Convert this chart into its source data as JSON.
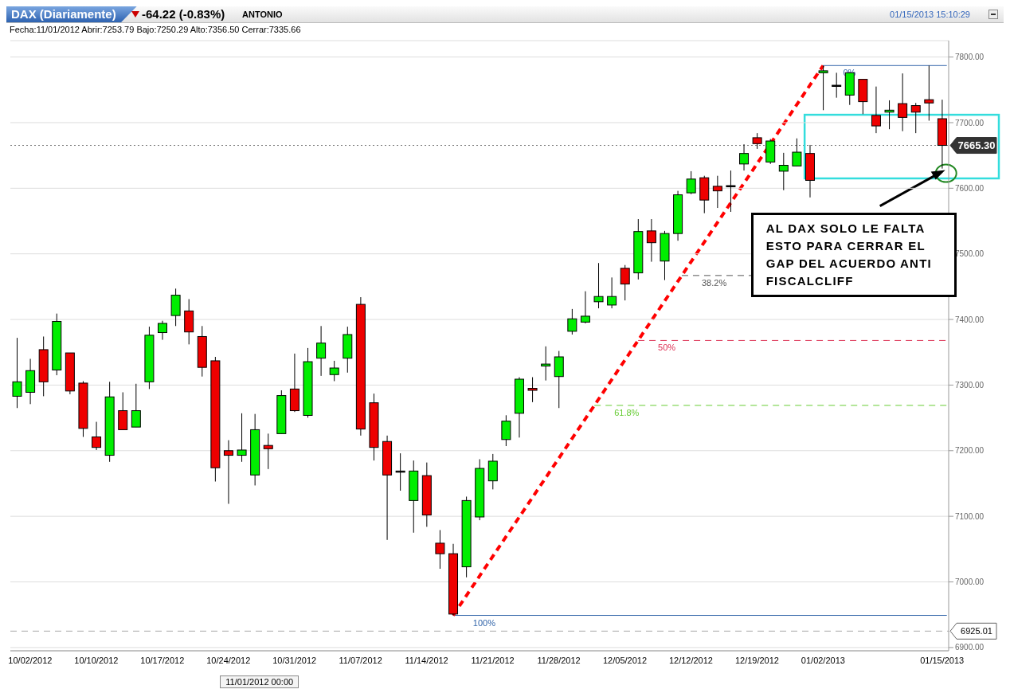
{
  "chart_data": {
    "type": "candlestick",
    "title": "DAX (Diariamente)",
    "subtitle": "-64.22 (-0.83%)",
    "annotations": [
      "ANTONIO",
      "Fecha:11/01/2012 Abrir:7253.79 Bajo:7250.29 Alto:7356.50 Cerrar:7335.66",
      "01/15/2013 15:10:29",
      "11/01/2012 00:00",
      {
        "text": "AL DAX SOLO LE FALTA ESTO PARA CERRAR EL GAP DEL ACUERDO ANTI FISCALCLIFF",
        "x": "01/15/2013",
        "y": 7630
      },
      {
        "text": "0%",
        "y": 7787
      },
      {
        "text": "38.2%",
        "y": 7467
      },
      {
        "text": "50%",
        "y": 7368
      },
      {
        "text": "61.8%",
        "y": 7269
      },
      {
        "text": "100%",
        "y": 6949
      }
    ],
    "categories": [
      null,
      "10/02/2012",
      null,
      null,
      null,
      null,
      "10/10/2012",
      null,
      null,
      null,
      null,
      "10/17/2012",
      null,
      null,
      null,
      null,
      "10/24/2012",
      null,
      null,
      null,
      null,
      "10/31/2012",
      null,
      null,
      null,
      null,
      "11/07/2012",
      null,
      null,
      null,
      null,
      "11/14/2012",
      null,
      null,
      null,
      null,
      "11/21/2012",
      null,
      null,
      null,
      null,
      "11/28/2012",
      null,
      null,
      null,
      null,
      "12/05/2012",
      null,
      null,
      null,
      null,
      "12/12/2012",
      null,
      null,
      null,
      null,
      "12/19/2012",
      null,
      null,
      null,
      null,
      "01/02/2013",
      null,
      null,
      null,
      null,
      null,
      null,
      null,
      null,
      "01/15/2013"
    ],
    "ohlc": [
      [
        7283,
        7372,
        7265,
        7305
      ],
      [
        7289,
        7340,
        7271,
        7322
      ],
      [
        7354,
        7374,
        7283,
        7305
      ],
      [
        7323,
        7409,
        7315,
        7397
      ],
      [
        7349,
        7349,
        7286,
        7291
      ],
      [
        7303,
        7306,
        7221,
        7234
      ],
      [
        7221,
        7244,
        7201,
        7205
      ],
      [
        7193,
        7305,
        7183,
        7282
      ],
      [
        7261,
        7289,
        7232,
        7232
      ],
      [
        7236,
        7302,
        7236,
        7261
      ],
      [
        7305,
        7389,
        7294,
        7376
      ],
      [
        7380,
        7398,
        7369,
        7394
      ],
      [
        7406,
        7447,
        7390,
        7437
      ],
      [
        7413,
        7431,
        7362,
        7381
      ],
      [
        7374,
        7390,
        7313,
        7327
      ],
      [
        7337,
        7343,
        7153,
        7174
      ],
      [
        7200,
        7216,
        7119,
        7193
      ],
      [
        7193,
        7257,
        7183,
        7201
      ],
      [
        7163,
        7256,
        7147,
        7232
      ],
      [
        7208,
        7226,
        7172,
        7203
      ],
      [
        7226,
        7292,
        7226,
        7284
      ],
      [
        7294,
        7348,
        7259,
        7261
      ],
      [
        7253.79,
        7356.5,
        7250.29,
        7335.66
      ],
      [
        7341,
        7390,
        7314,
        7364
      ],
      [
        7316,
        7337,
        7306,
        7326
      ],
      [
        7341,
        7389,
        7319,
        7377
      ],
      [
        7423,
        7434,
        7223,
        7233
      ],
      [
        7273,
        7287,
        7185,
        7205
      ],
      [
        7214,
        7223,
        7064,
        7163
      ],
      [
        7169,
        7196,
        7139,
        7169
      ],
      [
        7124,
        7185,
        7075,
        7169
      ],
      [
        7162,
        7182,
        7084,
        7102
      ],
      [
        7059,
        7079,
        7020,
        7043
      ],
      [
        7043,
        7058,
        6949,
        6951
      ],
      [
        7023,
        7130,
        7007,
        7124
      ],
      [
        7099,
        7187,
        7094,
        7173
      ],
      [
        7154,
        7195,
        7141,
        7184
      ],
      [
        7217,
        7254,
        7207,
        7245
      ],
      [
        7257,
        7312,
        7220,
        7309
      ],
      [
        7295,
        7312,
        7274,
        7292
      ],
      [
        7329,
        7359,
        7307,
        7332
      ],
      [
        7313,
        7352,
        7265,
        7343
      ],
      [
        7382,
        7416,
        7377,
        7401
      ],
      [
        7396,
        7443,
        7394,
        7405
      ],
      [
        7427,
        7486,
        7417,
        7435
      ],
      [
        7422,
        7464,
        7417,
        7435
      ],
      [
        7478,
        7483,
        7429,
        7454
      ],
      [
        7471,
        7553,
        7461,
        7534
      ],
      [
        7535,
        7553,
        7488,
        7517
      ],
      [
        7489,
        7535,
        7460,
        7531
      ],
      [
        7531,
        7596,
        7520,
        7590
      ],
      [
        7593,
        7626,
        7591,
        7614
      ],
      [
        7616,
        7619,
        7562,
        7582
      ],
      [
        7603,
        7619,
        7570,
        7596
      ],
      [
        7604,
        7627,
        7564,
        7604
      ],
      [
        7637,
        7667,
        7627,
        7653
      ],
      [
        7677,
        7684,
        7660,
        7668
      ],
      [
        7640,
        7675,
        7637,
        7672
      ],
      [
        7626,
        7654,
        7597,
        7635
      ],
      [
        7634,
        7676,
        7634,
        7655
      ],
      [
        7653,
        7666,
        7586,
        7612
      ],
      [
        7776,
        7787,
        7719,
        7779
      ],
      [
        7757,
        7776,
        7738,
        7757
      ],
      [
        7742,
        7777,
        7727,
        7776
      ],
      [
        7766,
        7766,
        7713,
        7732
      ],
      [
        7711,
        7755,
        7684,
        7695
      ],
      [
        7716,
        7734,
        7690,
        7719
      ],
      [
        7729,
        7775,
        7687,
        7708
      ],
      [
        7726,
        7730,
        7684,
        7716
      ],
      [
        7735,
        7787,
        7703,
        7730
      ],
      [
        7706,
        7735,
        7630,
        7665.3
      ]
    ],
    "colors": [
      "#00ee00",
      "#00ee00",
      "#ee0000",
      "#00ee00",
      "#ee0000",
      "#ee0000",
      "#ee0000",
      "#00ee00",
      "#ee0000",
      "#00ee00",
      "#00ee00",
      "#00ee00",
      "#00ee00",
      "#ee0000",
      "#ee0000",
      "#ee0000",
      "#ee0000",
      "#00ee00",
      "#00ee00",
      "#ee0000",
      "#00ee00",
      "#ee0000",
      "#00ee00",
      "#00ee00",
      "#00ee00",
      "#00ee00",
      "#ee0000",
      "#ee0000",
      "#ee0000",
      "#000000",
      "#00ee00",
      "#ee0000",
      "#ee0000",
      "#ee0000",
      "#00ee00",
      "#00ee00",
      "#00ee00",
      "#00ee00",
      "#00ee00",
      "#ee0000",
      "#00ee00",
      "#00ee00",
      "#00ee00",
      "#00ee00",
      "#00ee00",
      "#00ee00",
      "#ee0000",
      "#00ee00",
      "#ee0000",
      "#00ee00",
      "#00ee00",
      "#00ee00",
      "#ee0000",
      "#ee0000",
      "#000000",
      "#00ee00",
      "#ee0000",
      "#00ee00",
      "#00ee00",
      "#00ee00",
      "#ee0000",
      "#00ee00",
      "#000000",
      "#00ee00",
      "#ee0000",
      "#ee0000",
      "#00ee00",
      "#ee0000",
      "#ee0000",
      "#ee0000",
      "#ee0000"
    ],
    "series": [
      {
        "type": "line",
        "color": "#ff0000",
        "line_style": "dashed",
        "values": [
          null,
          null,
          null,
          null,
          null,
          null,
          null,
          null,
          null,
          null,
          null,
          null,
          null,
          null,
          null,
          null,
          null,
          null,
          null,
          null,
          null,
          null,
          null,
          null,
          null,
          null,
          null,
          null,
          null,
          null,
          null,
          null,
          null,
          6949,
          null,
          null,
          null,
          null,
          null,
          null,
          null,
          null,
          null,
          null,
          null,
          null,
          null,
          null,
          null,
          null,
          null,
          null,
          null,
          null,
          null,
          null,
          null,
          null,
          null,
          null,
          null,
          7787,
          null,
          null,
          null,
          null,
          null,
          null,
          null,
          null,
          null
        ]
      }
    ],
    "ylim": [
      6895,
      7825
    ],
    "yticks": [
      {
        "value": 6900,
        "label": "6900.00"
      },
      {
        "value": 7000,
        "label": "7000.00"
      },
      {
        "value": 7100,
        "label": "7100.00"
      },
      {
        "value": 7200,
        "label": "7200.00"
      },
      {
        "value": 7300,
        "label": "7300.00"
      },
      {
        "value": 7400,
        "label": "7400.00"
      },
      {
        "value": 7500,
        "label": "7500.00"
      },
      {
        "value": 7600,
        "label": "7600.00"
      },
      {
        "value": 7700,
        "label": "7700.00"
      },
      {
        "value": 7800,
        "label": "7800.00"
      }
    ],
    "grid": "y",
    "ref_lines": [
      {
        "axis": "y",
        "value": 7665.3,
        "label": "7665.30",
        "color": "#777777",
        "line_style": "dotted"
      },
      {
        "axis": "y",
        "value": 6925.01,
        "label": "6925.01",
        "color": "#aaaaaa",
        "line_style": "dashed"
      },
      {
        "axis": "y",
        "value": 7787,
        "color": "#3366aa",
        "line_style": "solid"
      },
      {
        "axis": "y",
        "value": 7467,
        "color": "#555555",
        "line_style": "dashed"
      },
      {
        "axis": "y",
        "value": 7368,
        "color": "#dd3355",
        "line_style": "dashed"
      },
      {
        "axis": "y",
        "value": 7269,
        "color": "#66cc33",
        "line_style": "dashed"
      },
      {
        "axis": "y",
        "value": 6949,
        "color": "#3366aa",
        "line_style": "solid"
      }
    ]
  }
}
